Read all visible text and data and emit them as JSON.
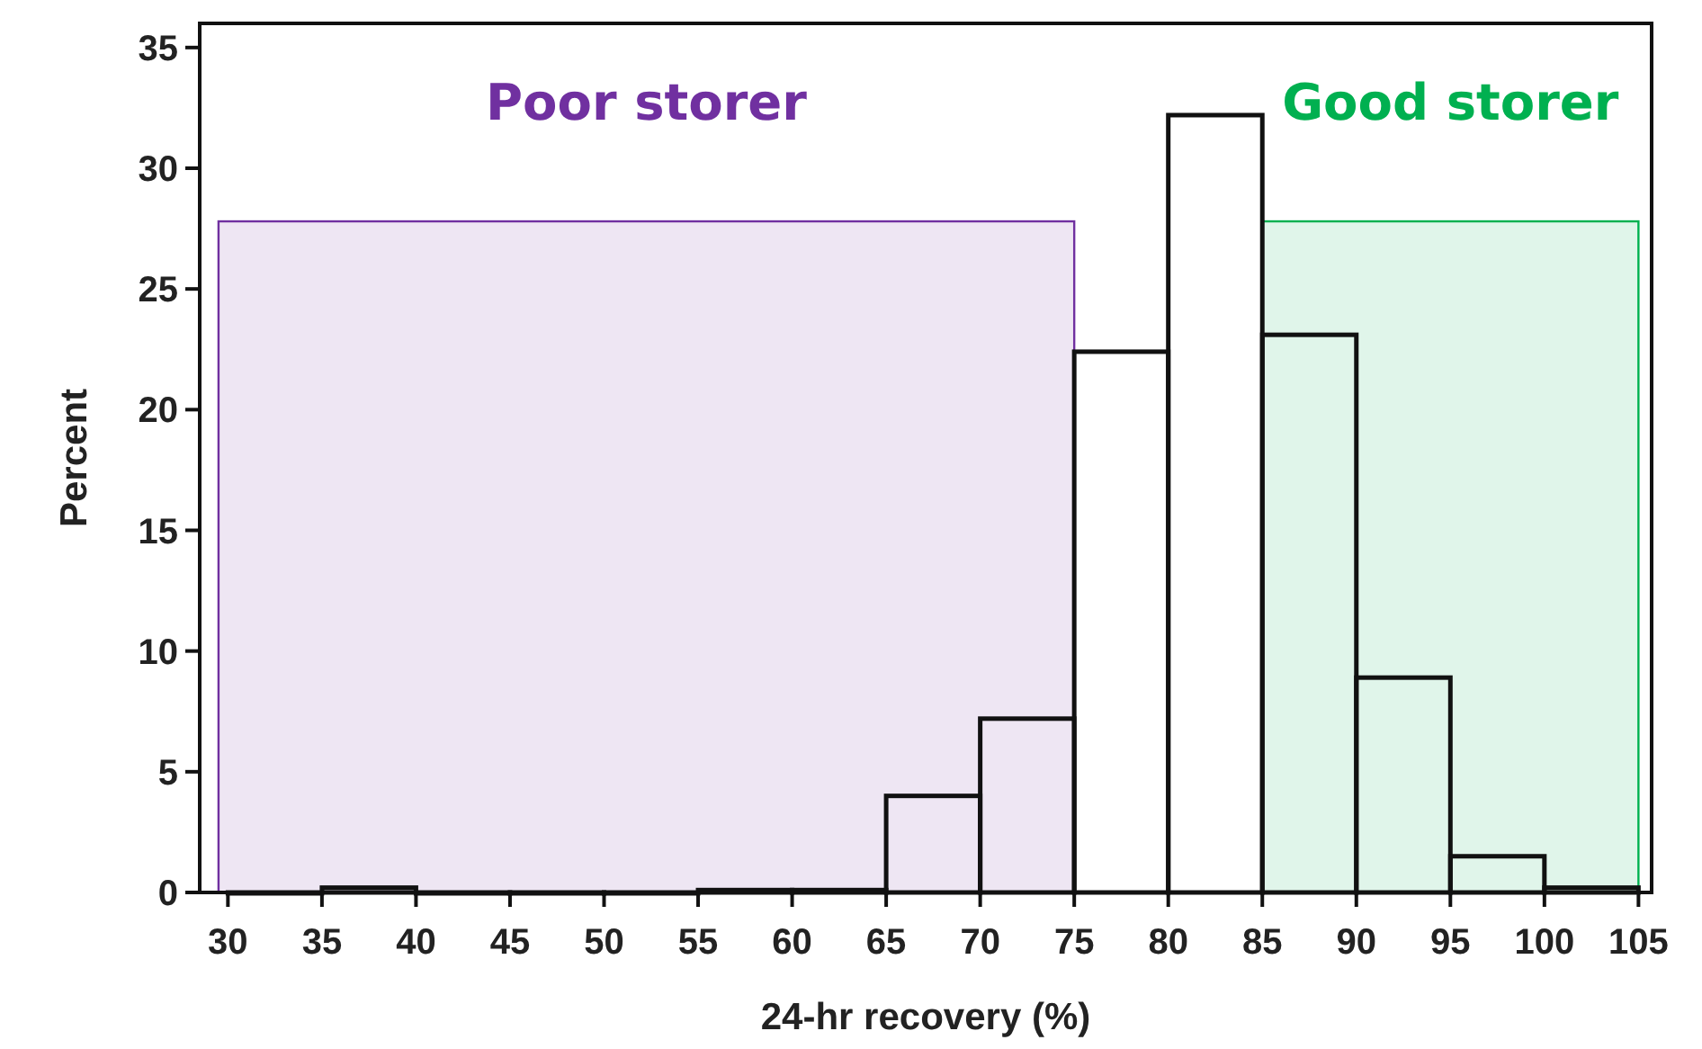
{
  "chart_data": {
    "type": "histogram",
    "xlabel": "24-hr recovery (%)",
    "ylabel": "Percent",
    "bins": [
      30,
      35,
      40,
      45,
      50,
      55,
      60,
      65,
      70,
      75,
      80,
      85,
      90,
      95,
      100,
      105
    ],
    "values": [
      0,
      0.2,
      0,
      0,
      0,
      0.1,
      0.1,
      4,
      7.2,
      22.4,
      32.2,
      23.1,
      8.9,
      1.5,
      0.2
    ],
    "color": "#111111",
    "xlim": [
      28.5,
      105.7
    ],
    "xticks": [
      30,
      35,
      40,
      45,
      50,
      55,
      60,
      65,
      70,
      75,
      80,
      85,
      90,
      95,
      100,
      105
    ],
    "ylim": [
      0,
      36
    ],
    "yticks": [
      0,
      5,
      10,
      15,
      20,
      25,
      30,
      35
    ],
    "bands": [
      {
        "axis": "x",
        "from": 29.5,
        "to": 75,
        "label": "Poor storer",
        "color": "#7030a0"
      },
      {
        "axis": "x",
        "from": 85,
        "to": 105,
        "label": "Good storer",
        "color": "#00b050"
      }
    ],
    "grid": false
  }
}
